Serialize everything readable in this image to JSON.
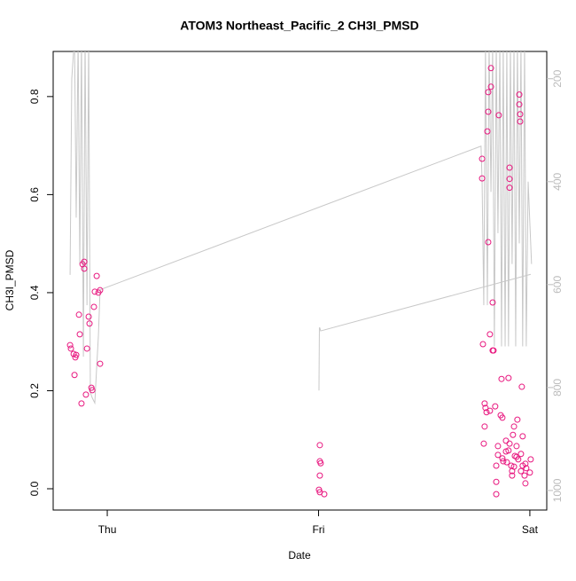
{
  "chart_data": {
    "type": "scatter",
    "title": "ATOM3 Northeast_Pacific_2 CH3I_PMSD",
    "x_label": "Date",
    "y_label": "CH3I_PMSD",
    "xlim": [
      -0.256,
      2.08
    ],
    "xticks": [
      {
        "value": 0,
        "label": "Thu"
      },
      {
        "value": 1,
        "label": "Fri"
      },
      {
        "value": 2,
        "label": "Sat"
      }
    ],
    "ylim": [
      -0.0434,
      0.892
    ],
    "yticks": [
      {
        "value": 0,
        "label": "0.0"
      },
      0.2,
      0.4,
      0.6,
      0.8
    ],
    "y2lim": [
      1038,
      147
    ],
    "y2ticks": [
      200,
      400,
      600,
      800,
      1000
    ],
    "series": [
      {
        "type": "scatter",
        "color": "#e8177f",
        "x": [
          -0.176,
          -0.172,
          -0.159,
          -0.147,
          -0.151,
          -0.155,
          -0.134,
          -0.13,
          -0.122,
          -0.117,
          -0.109,
          -0.109,
          -0.096,
          -0.101,
          -0.088,
          -0.084,
          -0.075,
          -0.071,
          -0.063,
          -0.059,
          -0.05,
          -0.042,
          -0.034,
          -0.034,
          1.006,
          1.006,
          1.01,
          1.006,
          1.002,
          1.006,
          1.027,
          1.816,
          1.816,
          1.803,
          1.803,
          1.799,
          1.853,
          1.95,
          1.95,
          1.954,
          1.954,
          1.774,
          1.774,
          1.904,
          1.904,
          1.904,
          1.803,
          1.824,
          1.811,
          1.778,
          1.824,
          1.828,
          1.866,
          1.899,
          1.962,
          1.79,
          1.795,
          1.811,
          1.786,
          1.782,
          1.836,
          1.862,
          1.87,
          1.786,
          1.941,
          1.925,
          1.92,
          1.887,
          1.904,
          1.966,
          1.849,
          1.849,
          1.87,
          1.887,
          1.899,
          1.937,
          1.929,
          1.937,
          1.945,
          1.958,
          2.004,
          1.874,
          1.891,
          1.912,
          1.925,
          1.966,
          1.979,
          1.983,
          1.841,
          1.916,
          1.916,
          1.975,
          2.0,
          1.958,
          1.841,
          1.979,
          1.841
        ],
        "values": [
          0.293,
          0.286,
          0.275,
          0.273,
          0.268,
          0.232,
          0.355,
          0.315,
          0.174,
          0.458,
          0.463,
          0.449,
          0.286,
          0.192,
          0.351,
          0.337,
          0.206,
          0.201,
          0.371,
          0.402,
          0.434,
          0.4,
          0.405,
          0.255,
          0.089,
          0.056,
          0.052,
          0.027,
          -0.002,
          -0.007,
          -0.011,
          0.858,
          0.82,
          0.809,
          0.769,
          0.729,
          0.762,
          0.804,
          0.784,
          0.764,
          0.749,
          0.673,
          0.633,
          0.655,
          0.632,
          0.614,
          0.503,
          0.38,
          0.315,
          0.295,
          0.282,
          0.282,
          0.224,
          0.226,
          0.208,
          0.165,
          0.156,
          0.159,
          0.174,
          0.092,
          0.168,
          0.15,
          0.145,
          0.127,
          0.141,
          0.127,
          0.11,
          0.098,
          0.092,
          0.107,
          0.087,
          0.069,
          0.062,
          0.076,
          0.078,
          0.087,
          0.067,
          0.065,
          0.06,
          0.071,
          0.06,
          0.056,
          0.054,
          0.047,
          0.045,
          0.047,
          0.051,
          0.042,
          0.047,
          0.036,
          0.027,
          0.027,
          0.033,
          0.036,
          0.014,
          0.011,
          -0.011
        ]
      },
      {
        "type": "line",
        "axis": "y2",
        "color": "#c8c8c8",
        "x": [
          -0.176,
          -0.168,
          -0.155,
          -0.147,
          -0.138,
          -0.13,
          -0.122,
          -0.113,
          -0.105,
          -0.096,
          -0.088,
          -0.08,
          -0.071,
          -0.059,
          -0.05,
          -0.042,
          -0.034,
          1.769,
          1.774,
          1.782,
          1.79,
          1.799,
          1.807,
          1.816,
          1.824,
          1.832,
          1.841,
          1.849,
          1.858,
          1.866,
          1.874,
          1.883,
          1.891,
          1.899,
          1.908,
          1.916,
          1.925,
          1.933,
          1.941,
          1.95,
          1.958,
          1.966,
          1.975,
          1.983,
          1.992,
          2.008,
          null,
          1.0,
          1.002,
          1.004,
          1.006,
          1.01,
          2.004
        ],
        "values": [
          581,
          200,
          120,
          470,
          120,
          560,
          120,
          740,
          120,
          640,
          120,
          810,
          820,
          830,
          760,
          700,
          610,
          331,
          400,
          640,
          130,
          640,
          130,
          420,
          130,
          720,
          130,
          500,
          130,
          720,
          130,
          720,
          130,
          720,
          130,
          560,
          130,
          720,
          130,
          520,
          130,
          720,
          130,
          720,
          400,
          560,
          null,
          805,
          805,
          684,
          684,
          690,
          580
        ]
      }
    ]
  }
}
